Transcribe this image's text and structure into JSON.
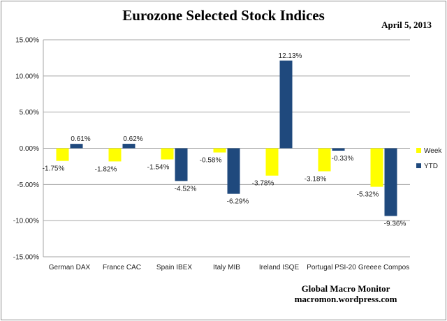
{
  "chart_data": {
    "type": "bar",
    "title": "Eurozone Selected Stock Indices",
    "subtitle": "April 5, 2013",
    "categories": [
      "German DAX",
      "France CAC",
      "Spain IBEX",
      "Italy MIB",
      "Ireland ISQE",
      "Portugal PSI-20",
      "Greeee Compos"
    ],
    "series": [
      {
        "name": "Week",
        "color": "#ffff00",
        "values": [
          -1.75,
          -1.82,
          -1.54,
          -0.58,
          -3.78,
          -3.18,
          -5.32
        ]
      },
      {
        "name": "YTD",
        "color": "#1f497d",
        "values": [
          0.61,
          0.62,
          -4.52,
          -6.29,
          12.13,
          -0.33,
          -9.36
        ]
      }
    ],
    "ylim": [
      -15,
      15
    ],
    "yticks": [
      15,
      10,
      5,
      0,
      -5,
      -10,
      -15
    ],
    "tick_format": "0.00%",
    "grid": true,
    "legend": "right",
    "data_labels": true
  },
  "credit": {
    "line1": "Global Macro Monitor",
    "line2": "macromon.wordpress.com"
  }
}
